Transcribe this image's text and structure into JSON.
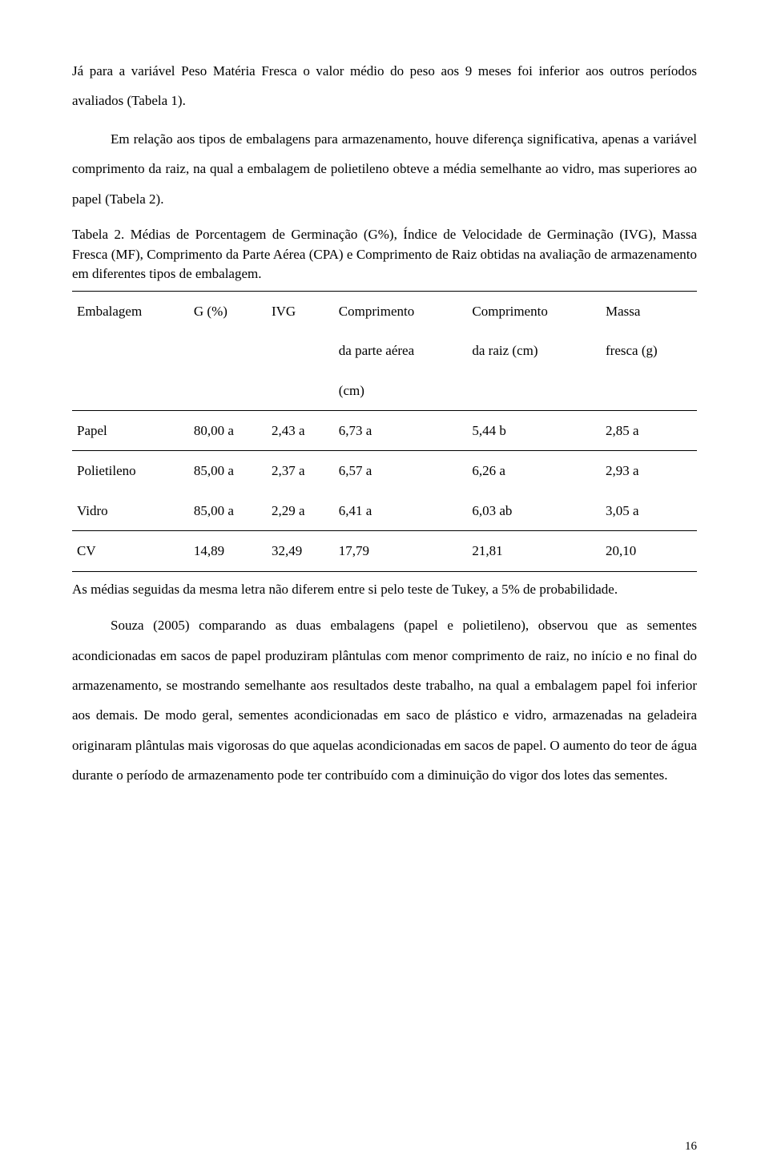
{
  "paragraphs": {
    "p1": "Já para a variável Peso Matéria Fresca o valor médio do peso aos 9 meses foi inferior aos outros períodos avaliados (Tabela 1).",
    "p2": "Em relação aos tipos de embalagens para armazenamento, houve diferença significativa, apenas a variável comprimento da raiz, na qual a embalagem de polietileno obteve a média semelhante ao vidro, mas superiores ao papel (Tabela 2).",
    "caption": "Tabela 2. Médias de Porcentagem de Germinação (G%), Índice de Velocidade de Germinação (IVG), Massa Fresca (MF), Comprimento da Parte Aérea (CPA) e Comprimento de Raiz obtidas na avaliação de armazenamento em diferentes tipos de embalagem.",
    "footnote": "As médias seguidas da mesma letra não diferem entre si pelo teste de Tukey, a 5% de probabilidade.",
    "p3": "Souza (2005) comparando as duas embalagens (papel e polietileno), observou que as sementes acondicionadas em sacos de papel produziram plântulas com menor comprimento de raiz, no início e no final do armazenamento, se mostrando semelhante aos resultados deste trabalho, na qual a embalagem papel foi inferior aos demais. De modo geral, sementes acondicionadas em saco de plástico e vidro, armazenadas na geladeira originaram plântulas mais vigorosas do que aquelas acondicionadas em sacos de papel. O aumento do teor de água durante o período de armazenamento pode ter contribuído com a diminuição do vigor dos lotes das sementes."
  },
  "table": {
    "header1": {
      "c0": "Embalagem",
      "c1": "G (%)",
      "c2": "IVG",
      "c3": "Comprimento",
      "c4": "Comprimento",
      "c5": "Massa"
    },
    "header2": {
      "c3": "da parte aérea",
      "c4": "da raiz (cm)",
      "c5": "fresca (g)"
    },
    "header3": {
      "c3": "(cm)"
    },
    "rows": [
      {
        "c0": "Papel",
        "c1": "80,00 a",
        "c2": "2,43 a",
        "c3": "6,73 a",
        "c4": "5,44 b",
        "c5": "2,85 a"
      },
      {
        "c0": "Polietileno",
        "c1": "85,00 a",
        "c2": "2,37 a",
        "c3": "6,57 a",
        "c4": "6,26 a",
        "c5": "2,93 a"
      },
      {
        "c0": "Vidro",
        "c1": "85,00 a",
        "c2": "2,29 a",
        "c3": "6,41 a",
        "c4": "6,03 ab",
        "c5": "3,05 a"
      }
    ],
    "cv": {
      "c0": "CV",
      "c1": "14,89",
      "c2": "32,49",
      "c3": "17,79",
      "c4": "21,81",
      "c5": "20,10"
    }
  },
  "page_number": "16"
}
